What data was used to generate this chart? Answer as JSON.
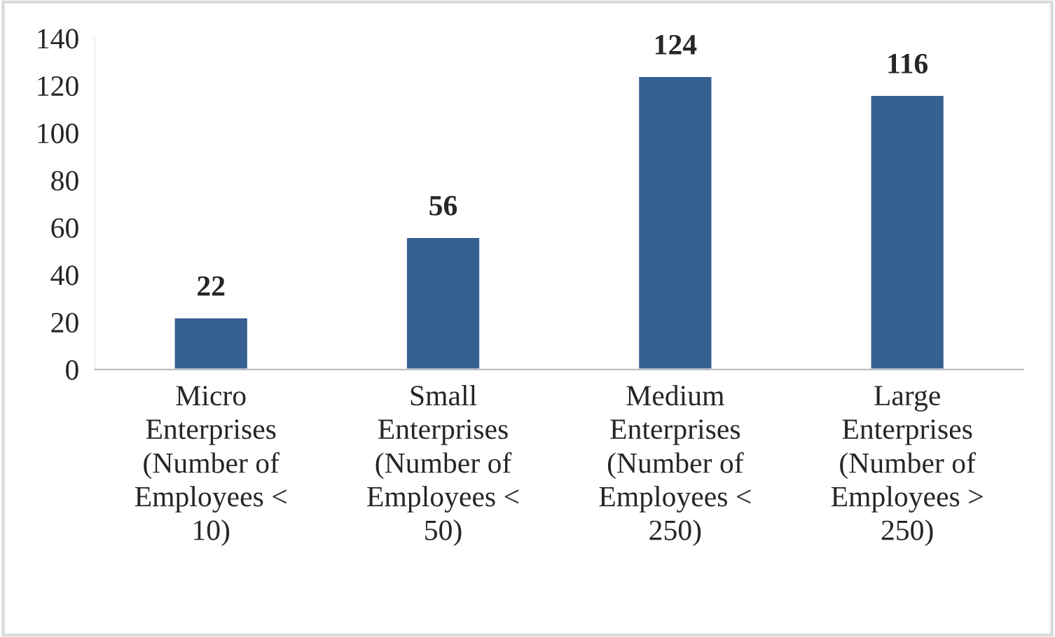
{
  "chart_data": {
    "type": "bar",
    "categories": [
      "Micro\nEnterprises\n(Number of\nEmployees <\n10)",
      "Small\nEnterprises\n(Number of\nEmployees <\n50)",
      "Medium\nEnterprises\n(Number of\nEmployees <\n250)",
      "Large\nEnterprises\n(Number of\nEmployees >\n250)"
    ],
    "values": [
      22,
      56,
      124,
      116
    ],
    "color": "#376092",
    "ylim": [
      0,
      140
    ],
    "yticks": [
      0,
      20,
      40,
      60,
      80,
      100,
      120,
      140
    ],
    "data_labels": true,
    "grid": false,
    "legend": false
  }
}
